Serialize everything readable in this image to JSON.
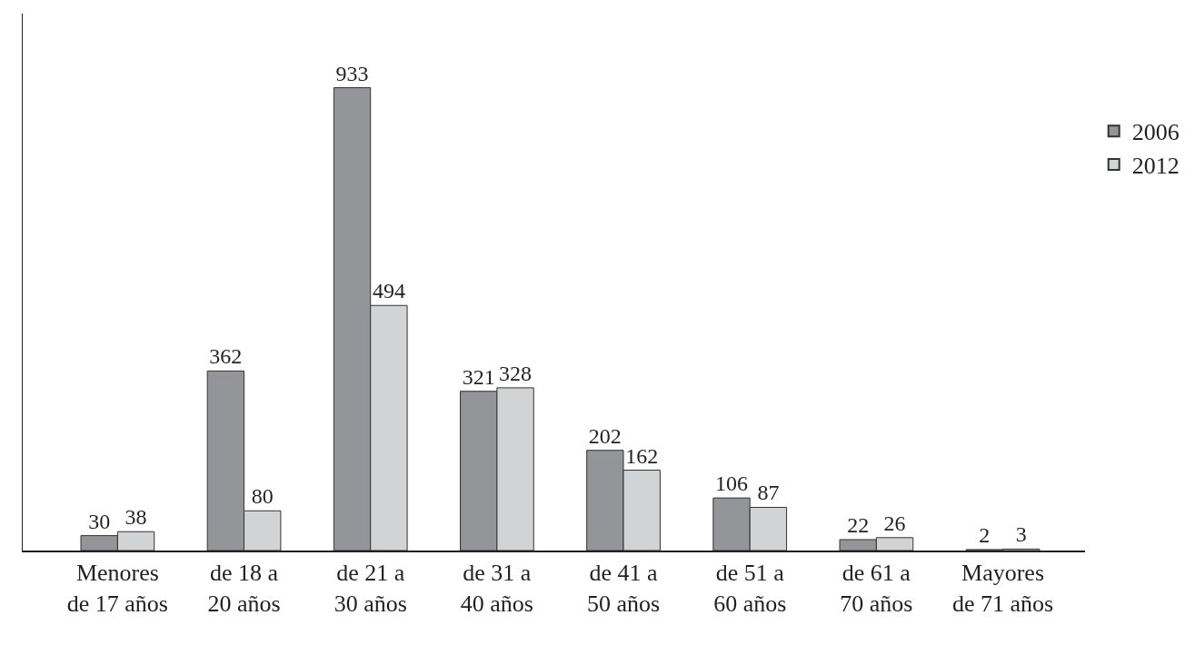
{
  "chart_data": {
    "type": "bar",
    "categories": [
      "Menores\nde 17 años",
      "de 18 a\n20 años",
      "de 21 a\n30 años",
      "de 31 a\n40 años",
      "de 41 a\n50 años",
      "de 51 a\n60 años",
      "de 61 a\n70 años",
      "Mayores\nde 71 años"
    ],
    "series": [
      {
        "name": "2006",
        "color": "#939598",
        "values": [
          30,
          362,
          933,
          321,
          202,
          106,
          22,
          2
        ]
      },
      {
        "name": "2012",
        "color": "#d1d3d4",
        "values": [
          38,
          80,
          494,
          328,
          162,
          87,
          26,
          3
        ]
      }
    ],
    "data_labels": true,
    "legend": "right",
    "tick_labels": "x"
  }
}
